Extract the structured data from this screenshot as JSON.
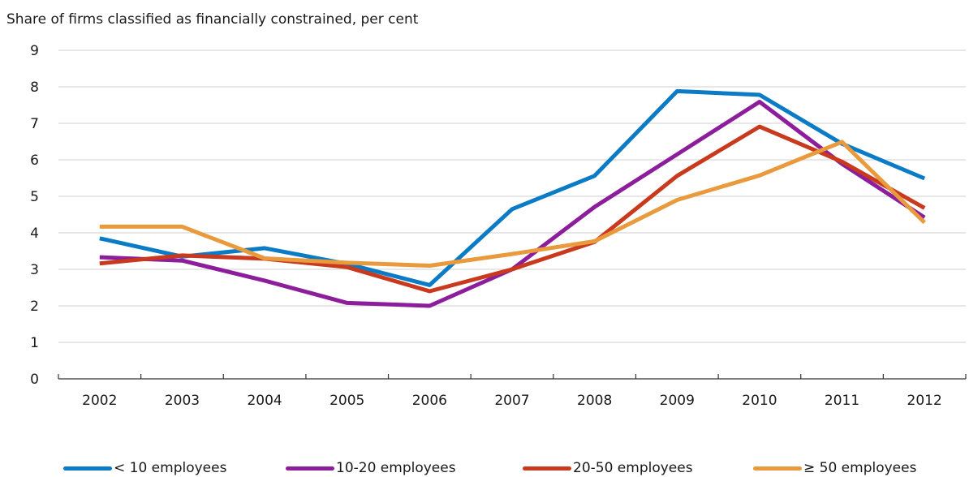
{
  "chart_data": {
    "type": "line",
    "title": "Share of firms classified as financially constrained, per cent",
    "xlabel": "",
    "ylabel": "",
    "x": [
      "2002",
      "2003",
      "2004",
      "2005",
      "2006",
      "2007",
      "2008",
      "2009",
      "2010",
      "2011",
      "2012"
    ],
    "ylim": [
      0,
      9
    ],
    "yticks": [
      0,
      1,
      2,
      3,
      4,
      5,
      6,
      7,
      8,
      9
    ],
    "grid": "horizontal",
    "legend_position": "bottom",
    "series": [
      {
        "name": "< 10 employees",
        "color": "#0a7bc4",
        "values": [
          3.85,
          3.35,
          3.58,
          3.15,
          2.57,
          4.65,
          5.56,
          7.88,
          7.78,
          6.44,
          5.49
        ]
      },
      {
        "name": "10-20 employees",
        "color": "#8d1e9b",
        "values": [
          3.33,
          3.24,
          2.69,
          2.08,
          2.0,
          3.0,
          4.71,
          6.15,
          7.59,
          5.89,
          4.42
        ]
      },
      {
        "name": "20-50 employees",
        "color": "#c8391e",
        "values": [
          3.16,
          3.38,
          3.29,
          3.06,
          2.4,
          3.0,
          3.75,
          5.56,
          6.91,
          5.95,
          4.68
        ]
      },
      {
        "name": "≥ 50 employees",
        "color": "#e89a3c",
        "values": [
          4.17,
          4.17,
          3.3,
          3.18,
          3.1,
          3.42,
          3.77,
          4.9,
          5.57,
          6.49,
          4.28
        ]
      }
    ]
  }
}
